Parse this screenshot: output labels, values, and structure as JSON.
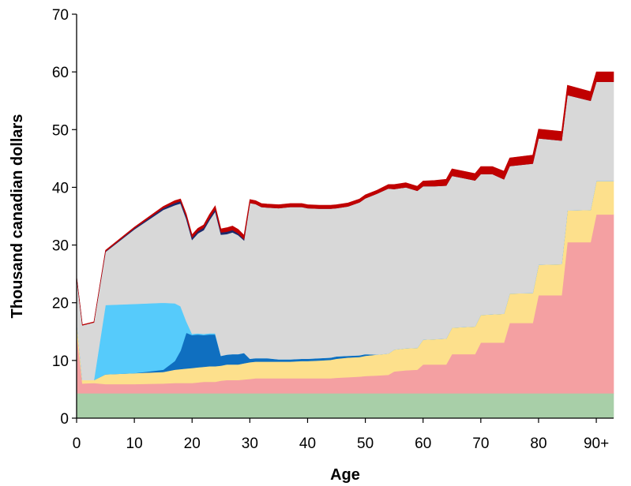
{
  "chart_data": {
    "type": "area",
    "title": "",
    "xlabel": "Age",
    "ylabel": "Thousand canadian dollars",
    "xlim": [
      0,
      93
    ],
    "ylim": [
      0,
      70
    ],
    "x_ticks": [
      "0",
      "10",
      "20",
      "30",
      "40",
      "50",
      "60",
      "70",
      "80",
      "90+"
    ],
    "y_ticks": [
      "0",
      "10",
      "20",
      "30",
      "40",
      "50",
      "60",
      "70"
    ],
    "grid": false,
    "legend": "none",
    "stacked": true,
    "x": [
      0,
      1,
      3,
      5,
      10,
      15,
      17,
      18,
      19,
      20,
      21,
      22,
      23,
      24,
      25,
      26,
      27,
      28,
      29,
      30,
      31,
      32,
      33,
      35,
      37,
      39,
      40,
      42,
      44,
      45,
      47,
      49,
      50,
      52,
      54,
      55,
      57,
      59,
      60,
      62,
      64,
      65,
      67,
      69,
      70,
      72,
      74,
      75,
      79,
      80,
      84,
      85,
      89,
      90,
      93
    ],
    "series": [
      {
        "color": "#a8cfa8",
        "values": [
          4.3,
          4.3,
          4.3,
          4.3,
          4.3,
          4.3,
          4.3,
          4.3,
          4.3,
          4.3,
          4.3,
          4.3,
          4.3,
          4.3,
          4.3,
          4.3,
          4.3,
          4.3,
          4.3,
          4.3,
          4.3,
          4.3,
          4.3,
          4.3,
          4.3,
          4.3,
          4.3,
          4.3,
          4.3,
          4.3,
          4.3,
          4.3,
          4.3,
          4.3,
          4.3,
          4.3,
          4.3,
          4.3,
          4.3,
          4.3,
          4.3,
          4.3,
          4.3,
          4.3,
          4.3,
          4.3,
          4.3,
          4.3,
          4.3,
          4.3,
          4.3,
          4.3,
          4.3,
          4.3,
          4.3
        ]
      },
      {
        "color": "#f4a0a2",
        "values": [
          10.5,
          1.7,
          1.8,
          1.6,
          1.6,
          1.7,
          1.8,
          1.8,
          1.8,
          1.8,
          1.9,
          2.0,
          2.0,
          2.0,
          2.2,
          2.3,
          2.3,
          2.3,
          2.4,
          2.5,
          2.6,
          2.6,
          2.6,
          2.6,
          2.6,
          2.6,
          2.6,
          2.6,
          2.6,
          2.7,
          2.8,
          2.9,
          3.0,
          3.1,
          3.2,
          3.8,
          4.0,
          4.1,
          5.0,
          5.0,
          5.0,
          6.8,
          6.8,
          6.8,
          8.8,
          8.8,
          8.8,
          12.2,
          12.2,
          17.0,
          17.0,
          26.2,
          26.2,
          31.0,
          31.0
        ]
      },
      {
        "color": "#fde08c",
        "values": [
          2.2,
          0.6,
          0.5,
          1.7,
          1.9,
          2.0,
          2.3,
          2.4,
          2.5,
          2.6,
          2.6,
          2.6,
          2.7,
          2.7,
          2.6,
          2.7,
          2.7,
          2.7,
          2.8,
          2.9,
          2.9,
          2.9,
          2.9,
          2.9,
          2.9,
          3.0,
          3.0,
          3.1,
          3.2,
          3.3,
          3.4,
          3.4,
          3.5,
          3.6,
          3.7,
          3.8,
          3.8,
          3.8,
          4.3,
          4.4,
          4.5,
          4.6,
          4.7,
          4.8,
          4.8,
          4.9,
          5.0,
          5.1,
          5.2,
          5.3,
          5.4,
          5.5,
          5.6,
          5.8,
          5.8
        ]
      },
      {
        "color": "#0f6fc0",
        "values": [
          0,
          0,
          0,
          0,
          0,
          0.4,
          1.5,
          3.2,
          6.2,
          5.7,
          5.7,
          5.5,
          5.5,
          5.5,
          1.7,
          1.7,
          1.8,
          1.8,
          1.8,
          0.6,
          0.6,
          0.6,
          0.6,
          0.4,
          0.4,
          0.4,
          0.4,
          0.4,
          0.4,
          0.4,
          0.3,
          0.3,
          0.3,
          0,
          0,
          0,
          0,
          0,
          0,
          0,
          0,
          0,
          0,
          0,
          0,
          0,
          0,
          0,
          0,
          0,
          0,
          0,
          0,
          0,
          0
        ]
      },
      {
        "color": "#56cbfb",
        "values": [
          0,
          0,
          0,
          12.0,
          12.0,
          11.6,
          10.0,
          7.7,
          2.0,
          0.2,
          0.2,
          0.2,
          0.2,
          0.2,
          0,
          0,
          0,
          0,
          0,
          0,
          0,
          0,
          0,
          0,
          0,
          0,
          0,
          0,
          0,
          0,
          0,
          0,
          0,
          0,
          0,
          0,
          0,
          0,
          0,
          0,
          0,
          0,
          0,
          0,
          0,
          0,
          0,
          0,
          0,
          0,
          0,
          0,
          0,
          0,
          0
        ]
      },
      {
        "color": "#d8d8d8",
        "values": [
          7.5,
          9.5,
          10.0,
          9.2,
          12.9,
          16.1,
          17.0,
          17.8,
          17.7,
          16.3,
          17.3,
          18.0,
          19.6,
          21.1,
          21.0,
          20.9,
          21.1,
          20.6,
          19.5,
          27.0,
          26.7,
          26.2,
          26.1,
          26.2,
          26.4,
          26.3,
          26.1,
          25.9,
          25.8,
          25.7,
          25.9,
          26.5,
          27.0,
          27.9,
          28.6,
          27.8,
          27.9,
          27.2,
          26.6,
          26.5,
          26.5,
          26.3,
          25.8,
          25.3,
          24.4,
          24.3,
          23.3,
          22.1,
          22.4,
          21.9,
          21.4,
          20.0,
          18.9,
          17.2,
          17.2
        ]
      },
      {
        "color": "#1c2a6c",
        "values": [
          0,
          0,
          0,
          0.1,
          0.2,
          0.3,
          0.4,
          0.4,
          0.4,
          0.4,
          0.4,
          0.4,
          0.4,
          0.4,
          0.4,
          0.4,
          0.4,
          0.3,
          0.2,
          0,
          0,
          0,
          0,
          0,
          0,
          0,
          0,
          0,
          0,
          0,
          0,
          0,
          0,
          0,
          0,
          0,
          0,
          0,
          0,
          0,
          0,
          0,
          0,
          0,
          0,
          0,
          0,
          0,
          0,
          0,
          0,
          0,
          0,
          0,
          0
        ]
      },
      {
        "color": "#c00000",
        "values": [
          0,
          0.1,
          0.1,
          0.2,
          0.2,
          0.3,
          0.4,
          0.4,
          0.5,
          0.5,
          0.5,
          0.5,
          0.6,
          0.6,
          0.6,
          0.7,
          0.7,
          0.7,
          0.7,
          0.6,
          0.6,
          0.6,
          0.6,
          0.6,
          0.6,
          0.6,
          0.6,
          0.6,
          0.6,
          0.6,
          0.6,
          0.6,
          0.6,
          0.6,
          0.7,
          0.8,
          0.8,
          0.8,
          0.9,
          1.0,
          1.1,
          1.2,
          1.2,
          1.2,
          1.3,
          1.3,
          1.4,
          1.4,
          1.5,
          1.6,
          1.6,
          1.7,
          1.6,
          1.7,
          1.7
        ]
      }
    ]
  }
}
